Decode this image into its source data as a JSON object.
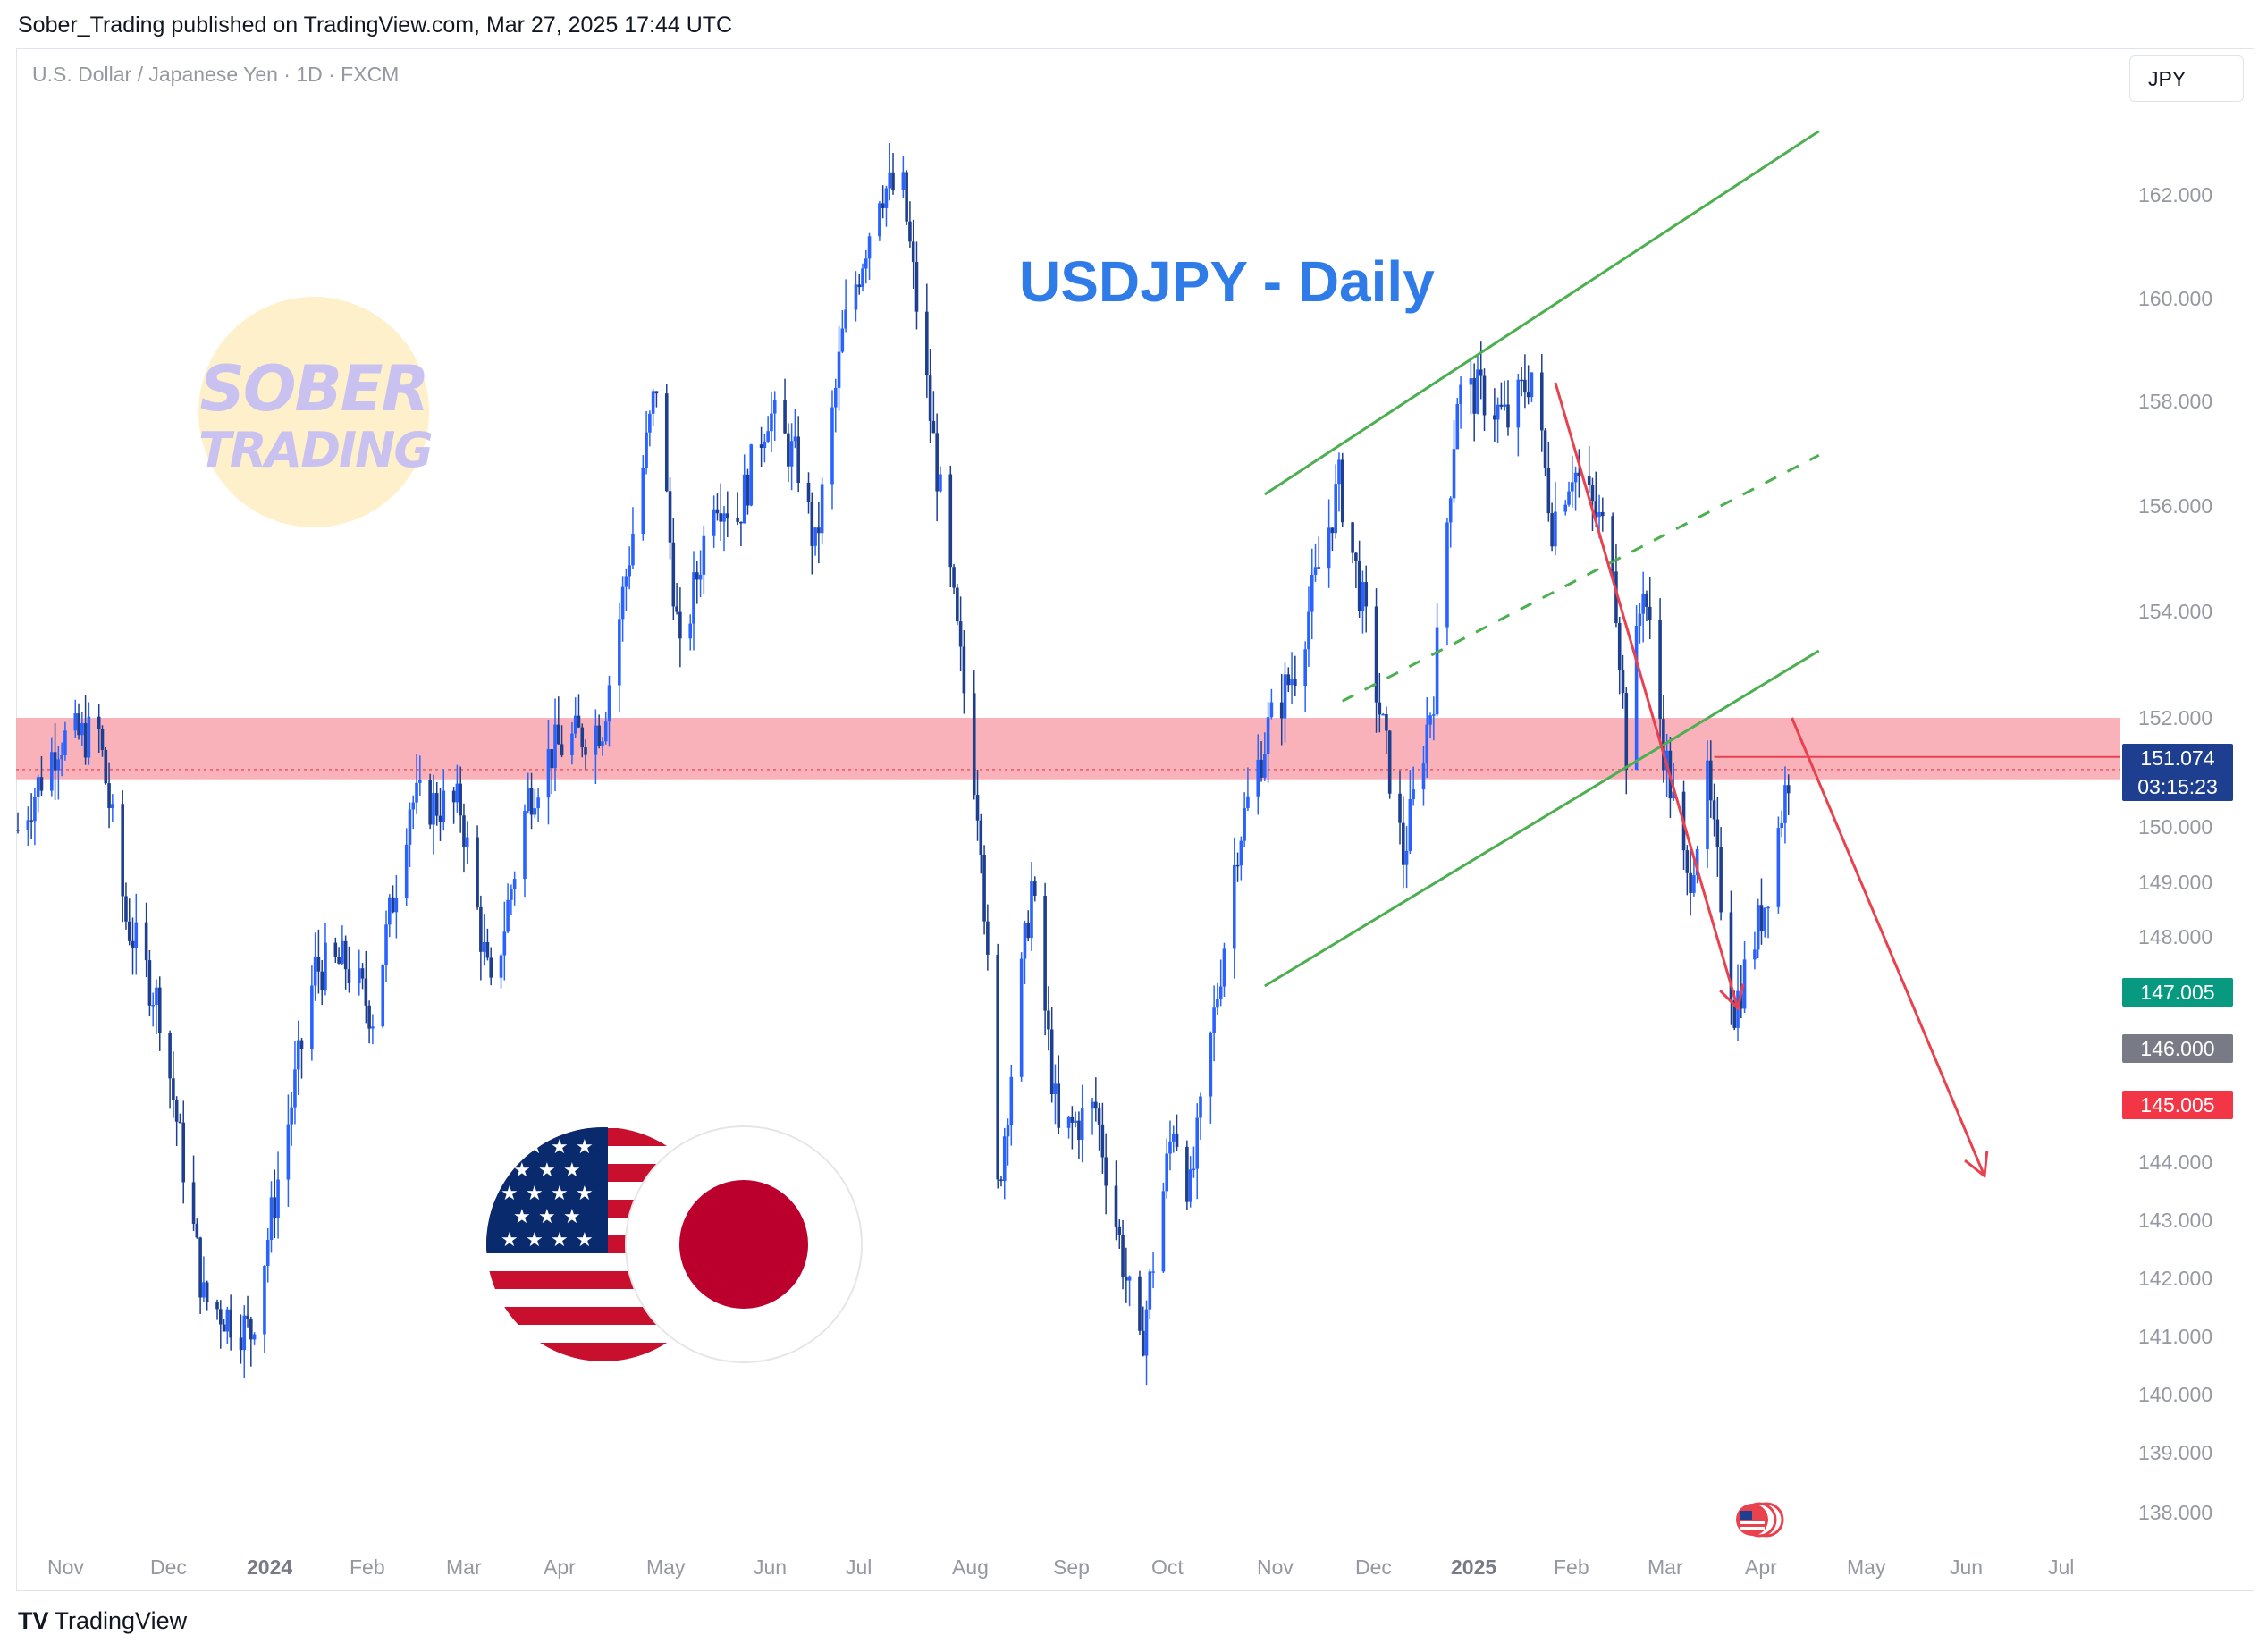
{
  "header": {
    "published": "Sober_Trading published on TradingView.com, Mar 27, 2025 17:44 UTC",
    "symbol": "U.S. Dollar / Japanese Yen · 1D · FXCM",
    "currency": "JPY"
  },
  "logo": {
    "line1": "SOBER",
    "line2": "TRADING"
  },
  "footer": {
    "brand": "TradingView"
  },
  "colors": {
    "bull": "#2962ff",
    "bear": "#1e3f8f",
    "channel": "#4caf50",
    "arrow": "#e8424f",
    "zone": "#f8aab2",
    "title": "#2f7be8"
  },
  "icons": [
    "tradingview-logo-icon",
    "us-flag-icon",
    "japan-flag-icon",
    "us-flag-badge-icon"
  ],
  "chart_data": {
    "type": "candlestick",
    "title": "USDJPY - Daily",
    "y_axis": {
      "range": [
        137.5,
        163
      ],
      "ticks": [
        "162.000",
        "160.000",
        "158.000",
        "156.000",
        "154.000",
        "152.000",
        "151.000",
        "150.000",
        "149.000",
        "148.000",
        "147.000",
        "146.000",
        "145.000",
        "144.000",
        "143.000",
        "142.000",
        "141.000",
        "140.000",
        "139.000",
        "138.000"
      ]
    },
    "x_axis": {
      "ticks": [
        "Nov",
        "Dec",
        "2024",
        "Feb",
        "Mar",
        "Apr",
        "May",
        "Jun",
        "Jul",
        "Aug",
        "Sep",
        "Oct",
        "Nov",
        "Dec",
        "2025",
        "Feb",
        "Mar",
        "Apr",
        "May",
        "Jun",
        "Jul"
      ],
      "bold_ticks": [
        "2024",
        "2025"
      ]
    },
    "price_labels": [
      {
        "text": "151.074",
        "sub": "03:15:23",
        "value": 151.074,
        "color": "#1e3f8f"
      },
      {
        "text": "147.005",
        "value": 147.005,
        "color": "#089981"
      },
      {
        "text": "146.000",
        "value": 146.0,
        "color": "#787b86"
      },
      {
        "text": "145.005",
        "value": 145.005,
        "color": "#f23645"
      }
    ],
    "resistance_zone": [
      150.9,
      152.0
    ],
    "anchors": [
      [
        "2023-10-20",
        150.0
      ],
      [
        "2023-11-01",
        151.6
      ],
      [
        "2023-11-13",
        151.7
      ],
      [
        "2023-11-21",
        148.4
      ],
      [
        "2023-12-01",
        146.8
      ],
      [
        "2023-12-14",
        141.6
      ],
      [
        "2023-12-28",
        141.0
      ],
      [
        "2024-01-16",
        147.5
      ],
      [
        "2024-01-25",
        147.6
      ],
      [
        "2024-02-02",
        146.7
      ],
      [
        "2024-02-13",
        150.5
      ],
      [
        "2024-02-28",
        150.4
      ],
      [
        "2024-03-08",
        147.0
      ],
      [
        "2024-03-19",
        150.6
      ],
      [
        "2024-03-26",
        151.4
      ],
      [
        "2024-04-10",
        151.9
      ],
      [
        "2024-04-26",
        158.0
      ],
      [
        "2024-05-03",
        153.0
      ],
      [
        "2024-05-13",
        156.1
      ],
      [
        "2024-05-20",
        155.6
      ],
      [
        "2024-05-29",
        157.5
      ],
      [
        "2024-06-07",
        156.5
      ],
      [
        "2024-06-12",
        155.0
      ],
      [
        "2024-06-20",
        158.8
      ],
      [
        "2024-07-01",
        161.5
      ],
      [
        "2024-07-08",
        161.4
      ],
      [
        "2024-07-15",
        157.9
      ],
      [
        "2024-07-31",
        150.0
      ],
      [
        "2024-08-05",
        143.5
      ],
      [
        "2024-08-15",
        149.0
      ],
      [
        "2024-08-23",
        144.5
      ],
      [
        "2024-09-03",
        145.0
      ],
      [
        "2024-09-16",
        140.6
      ],
      [
        "2024-09-26",
        144.8
      ],
      [
        "2024-10-01",
        143.5
      ],
      [
        "2024-10-15",
        149.8
      ],
      [
        "2024-10-24",
        151.8
      ],
      [
        "2024-11-01",
        152.9
      ],
      [
        "2024-11-14",
        156.2
      ],
      [
        "2024-11-21",
        154.0
      ],
      [
        "2024-12-03",
        149.5
      ],
      [
        "2024-12-12",
        152.5
      ],
      [
        "2024-12-19",
        157.8
      ],
      [
        "2024-12-26",
        157.8
      ],
      [
        "2025-01-03",
        157.3
      ],
      [
        "2025-01-10",
        158.2
      ],
      [
        "2025-01-16",
        155.5
      ],
      [
        "2025-01-22",
        156.5
      ],
      [
        "2025-02-03",
        155.0
      ],
      [
        "2025-02-07",
        151.4
      ],
      [
        "2025-02-12",
        154.5
      ],
      [
        "2025-02-18",
        151.5
      ],
      [
        "2025-02-25",
        149.0
      ],
      [
        "2025-03-03",
        150.8
      ],
      [
        "2025-03-11",
        146.8
      ],
      [
        "2025-03-20",
        148.7
      ],
      [
        "2025-03-27",
        151.0
      ]
    ],
    "annotations": {
      "channel_upper": [
        [
          "2024-10-23",
          156.0
        ],
        [
          "2025-04-05",
          162.5
        ]
      ],
      "channel_mid": [
        [
          "2024-11-15",
          152.3
        ],
        [
          "2025-04-05",
          156.7
        ]
      ],
      "channel_lower": [
        [
          "2024-10-23",
          147.2
        ],
        [
          "2025-04-05",
          153.2
        ]
      ],
      "arrow_past": [
        [
          "2025-01-17",
          158.0
        ],
        [
          "2025-03-12",
          146.8
        ]
      ],
      "arrow_projection": [
        [
          "2025-03-28",
          152.0
        ],
        [
          "2025-05-24",
          143.8
        ]
      ],
      "h_line": {
        "value": 151.3,
        "from": "2025-03-05"
      }
    }
  }
}
